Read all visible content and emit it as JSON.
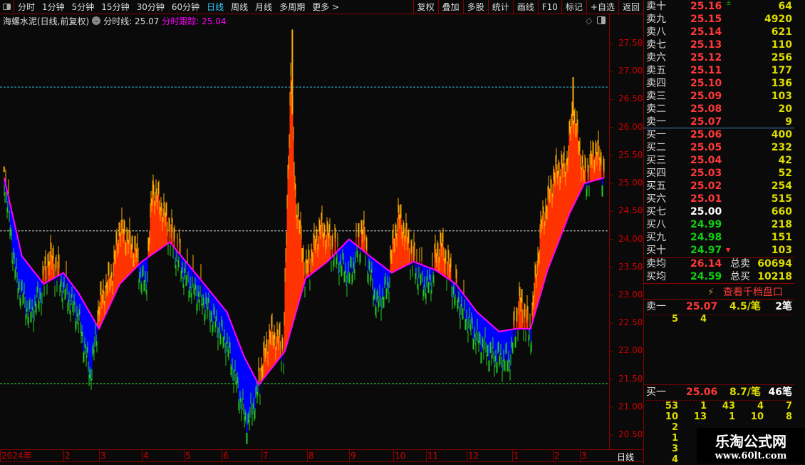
{
  "toolbar": {
    "periods": [
      "分时",
      "1分钟",
      "5分钟",
      "15分钟",
      "30分钟",
      "60分钟",
      "日线",
      "周线",
      "月线",
      "多周期",
      "更多 >"
    ],
    "active": "日线",
    "right_buttons": [
      "复权",
      "叠加",
      "多股",
      "统计",
      "画线",
      "F10",
      "标记",
      "+自选",
      "返回"
    ]
  },
  "info": {
    "title": "海螺水泥(日线,前复权)",
    "line_label": "分时线: 25.07",
    "track_label": "分时跟踪: 25.04"
  },
  "order_book": {
    "asks": [
      {
        "n": "卖十",
        "p": "25.16",
        "v": "64",
        "flag": "up"
      },
      {
        "n": "卖九",
        "p": "25.15",
        "v": "4920"
      },
      {
        "n": "卖八",
        "p": "25.14",
        "v": "621"
      },
      {
        "n": "卖七",
        "p": "25.13",
        "v": "110"
      },
      {
        "n": "卖六",
        "p": "25.12",
        "v": "256"
      },
      {
        "n": "卖五",
        "p": "25.11",
        "v": "177"
      },
      {
        "n": "卖四",
        "p": "25.10",
        "v": "136"
      },
      {
        "n": "卖三",
        "p": "25.09",
        "v": "103"
      },
      {
        "n": "卖二",
        "p": "25.08",
        "v": "20"
      },
      {
        "n": "卖一",
        "p": "25.07",
        "v": "9"
      }
    ],
    "bids": [
      {
        "n": "买一",
        "p": "25.06",
        "v": "400",
        "c": "red"
      },
      {
        "n": "买二",
        "p": "25.05",
        "v": "232",
        "c": "red"
      },
      {
        "n": "买三",
        "p": "25.04",
        "v": "42",
        "c": "red"
      },
      {
        "n": "买四",
        "p": "25.03",
        "v": "52",
        "c": "red"
      },
      {
        "n": "买五",
        "p": "25.02",
        "v": "254",
        "c": "red"
      },
      {
        "n": "买六",
        "p": "25.01",
        "v": "515",
        "c": "red"
      },
      {
        "n": "买七",
        "p": "25.00",
        "v": "660",
        "c": "wht"
      },
      {
        "n": "买八",
        "p": "24.99",
        "v": "218",
        "c": "grn"
      },
      {
        "n": "买九",
        "p": "24.98",
        "v": "151",
        "c": "grn"
      },
      {
        "n": "买十",
        "p": "24.97",
        "v": "103",
        "c": "grn"
      }
    ],
    "avg_sell": {
      "n": "卖均",
      "p": "26.14",
      "t": "总卖",
      "v": "60694"
    },
    "avg_buy": {
      "n": "买均",
      "p": "24.59",
      "t": "总买",
      "v": "10218"
    },
    "depth_link": "查看千档盘口",
    "sell1": {
      "n": "卖一",
      "p": "25.07",
      "per": "4.5/笔",
      "cnt": "2笔",
      "orders": [
        "5",
        "4"
      ]
    },
    "buy1": {
      "n": "买一",
      "p": "25.06",
      "per": "8.7/笔",
      "cnt": "46笔",
      "orders": [
        "53",
        "1",
        "43",
        "4",
        "7",
        "10",
        "13",
        "1",
        "10",
        "8",
        "2",
        "",
        "",
        "",
        "",
        "1",
        "",
        "",
        "",
        "",
        "3",
        "",
        "",
        "",
        "",
        "4"
      ]
    }
  },
  "watermark": {
    "name": "乐淘公式网",
    "url": "www.60lt.com"
  },
  "bottom": {
    "period_label": "日线"
  },
  "chart_data": {
    "type": "line",
    "yticks": [
      "27.50",
      "27.00",
      "26.50",
      "26.00",
      "25.50",
      "25.00",
      "24.50",
      "24.00",
      "23.50",
      "23.00",
      "22.50",
      "22.00",
      "21.50",
      "21.00",
      "20.50"
    ],
    "ylim": [
      20.5,
      27.5
    ],
    "xticks": [
      "2024年",
      "2",
      "3",
      "4",
      "5",
      "6",
      "7",
      "8",
      "9",
      "10",
      "11",
      "12",
      "1",
      "2",
      "3"
    ],
    "hlines": [
      {
        "value": 26.72,
        "color": "#33bbdd"
      },
      {
        "value": 24.15,
        "color": "#dddddd"
      },
      {
        "value": 21.42,
        "color": "#33cc33"
      }
    ],
    "colors": {
      "above": "#ff3300",
      "above_top": "#ffaa00",
      "below": "#0000ff",
      "close": "#22cc22",
      "ma": "#ff00ff"
    },
    "close": [
      [
        "2024-01-02",
        25.2
      ],
      [
        "2024-01-08",
        23.4
      ],
      [
        "2024-01-15",
        22.7
      ],
      [
        "2024-01-22",
        23.2
      ],
      [
        "2024-01-25",
        23.6
      ],
      [
        "2024-02-01",
        23.2
      ],
      [
        "2024-02-13",
        22.7
      ],
      [
        "2024-02-23",
        21.65
      ],
      [
        "2024-03-01",
        22.7
      ],
      [
        "2024-03-11",
        23.3
      ],
      [
        "2024-03-16",
        24.1
      ],
      [
        "2024-03-27",
        23.7
      ],
      [
        "2024-04-04",
        23.2
      ],
      [
        "2024-04-09",
        24.8
      ],
      [
        "2024-04-21",
        24.1
      ],
      [
        "2024-05-02",
        23.4
      ],
      [
        "2024-05-19",
        22.9
      ],
      [
        "2024-06-05",
        22.2
      ],
      [
        "2024-06-20",
        20.75
      ],
      [
        "2024-06-29",
        21.4
      ],
      [
        "2024-07-07",
        22.2
      ],
      [
        "2024-07-16",
        22.0
      ],
      [
        "2024-07-21",
        27.0
      ],
      [
        "2024-07-24",
        24.7
      ],
      [
        "2024-07-31",
        23.3
      ],
      [
        "2024-08-11",
        24.1
      ],
      [
        "2024-08-21",
        23.8
      ],
      [
        "2024-09-01",
        23.4
      ],
      [
        "2024-09-10",
        24.1
      ],
      [
        "2024-09-20",
        22.9
      ],
      [
        "2024-09-27",
        23.2
      ],
      [
        "2024-10-06",
        24.3
      ],
      [
        "2024-10-20",
        23.6
      ],
      [
        "2024-11-02",
        23.2
      ],
      [
        "2024-11-12",
        23.8
      ],
      [
        "2024-11-23",
        23.05
      ],
      [
        "2024-12-08",
        22.3
      ],
      [
        "2024-12-18",
        22.0
      ],
      [
        "2024-12-30",
        21.9
      ],
      [
        "2025-01-07",
        22.8
      ],
      [
        "2025-01-15",
        22.3
      ],
      [
        "2025-01-23",
        24.1
      ],
      [
        "2025-02-04",
        25.1
      ],
      [
        "2025-02-15",
        25.2
      ],
      [
        "2025-02-22",
        26.2
      ],
      [
        "2025-03-05",
        25.0
      ],
      [
        "2025-03-16",
        25.5
      ],
      [
        "2025-03-23",
        25.1
      ]
    ],
    "ma": [
      [
        "2024-01-02",
        25.1
      ],
      [
        "2024-01-11",
        23.7
      ],
      [
        "2024-01-22",
        23.2
      ],
      [
        "2024-02-01",
        23.4
      ],
      [
        "2024-02-13",
        23.05
      ],
      [
        "2024-03-01",
        22.4
      ],
      [
        "2024-03-16",
        23.2
      ],
      [
        "2024-04-01",
        23.6
      ],
      [
        "2024-04-21",
        23.95
      ],
      [
        "2024-05-14",
        23.3
      ],
      [
        "2024-06-05",
        22.7
      ],
      [
        "2024-06-18",
        21.9
      ],
      [
        "2024-06-29",
        21.4
      ],
      [
        "2024-07-17",
        22.0
      ],
      [
        "2024-07-31",
        23.3
      ],
      [
        "2024-08-16",
        23.6
      ],
      [
        "2024-09-01",
        24.0
      ],
      [
        "2024-09-15",
        23.7
      ],
      [
        "2024-09-30",
        23.4
      ],
      [
        "2024-10-20",
        23.6
      ],
      [
        "2024-11-08",
        23.45
      ],
      [
        "2024-11-23",
        23.2
      ],
      [
        "2024-12-08",
        22.7
      ],
      [
        "2024-12-23",
        22.35
      ],
      [
        "2025-01-04",
        22.4
      ],
      [
        "2025-01-15",
        22.4
      ],
      [
        "2025-01-28",
        23.45
      ],
      [
        "2025-02-18",
        24.45
      ],
      [
        "2025-03-05",
        25.0
      ],
      [
        "2025-03-23",
        25.1
      ]
    ],
    "highs": [
      [
        "2024-07-22",
        27.75
      ],
      [
        "2025-02-22",
        26.9
      ],
      [
        "2024-04-09",
        25.05
      ],
      [
        "2024-01-02",
        25.3
      ]
    ]
  }
}
